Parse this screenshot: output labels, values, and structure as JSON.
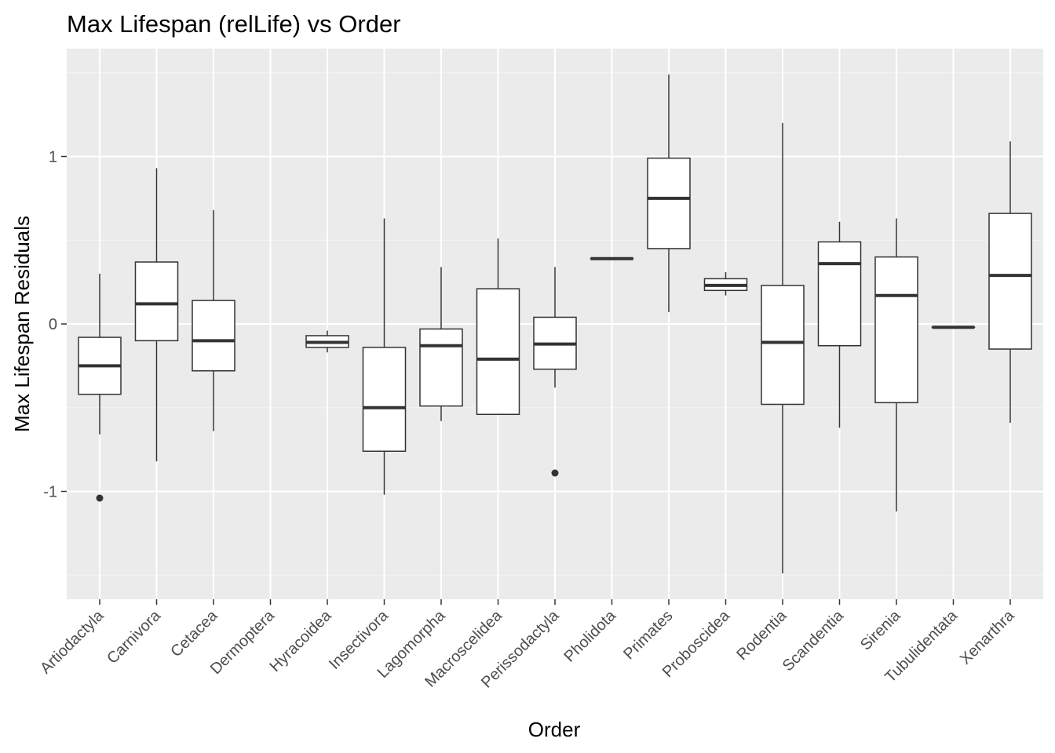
{
  "chart_data": {
    "type": "boxplot",
    "title": "Max Lifespan (relLife) vs Order",
    "xlabel": "Order",
    "ylabel": "Max Lifespan Residuals",
    "ylim": [
      -1.6,
      1.6
    ],
    "yticks": [
      -1,
      0,
      1
    ],
    "ytick_labels": [
      "-1",
      "0",
      "1"
    ],
    "grid": true,
    "categories": [
      "Artiodactyla",
      "Carnivora",
      "Cetacea",
      "Dermoptera",
      "Hyracoidea",
      "Insectivora",
      "Lagomorpha",
      "Macroscelidea",
      "Perissodactyla",
      "Pholidota",
      "Primates",
      "Proboscidea",
      "Rodentia",
      "Scandentia",
      "Sirenia",
      "Tubulidentata",
      "Xenarthra"
    ],
    "boxes": [
      {
        "category": "Artiodactyla",
        "min": -0.66,
        "q1": -0.42,
        "median": -0.25,
        "q3": -0.08,
        "max": 0.3,
        "outliers": [
          -1.04
        ]
      },
      {
        "category": "Carnivora",
        "min": -0.82,
        "q1": -0.1,
        "median": 0.12,
        "q3": 0.37,
        "max": 0.93,
        "outliers": []
      },
      {
        "category": "Cetacea",
        "min": -0.64,
        "q1": -0.28,
        "median": -0.1,
        "q3": 0.14,
        "max": 0.68,
        "outliers": []
      },
      {
        "category": "Dermoptera",
        "empty": true
      },
      {
        "category": "Hyracoidea",
        "min": -0.17,
        "q1": -0.14,
        "median": -0.11,
        "q3": -0.07,
        "max": -0.04,
        "outliers": []
      },
      {
        "category": "Insectivora",
        "min": -1.02,
        "q1": -0.76,
        "median": -0.5,
        "q3": -0.14,
        "max": 0.63,
        "outliers": []
      },
      {
        "category": "Lagomorpha",
        "min": -0.58,
        "q1": -0.49,
        "median": -0.13,
        "q3": -0.03,
        "max": 0.34,
        "outliers": []
      },
      {
        "category": "Macroscelidea",
        "min": -0.54,
        "q1": -0.54,
        "median": -0.21,
        "q3": 0.21,
        "max": 0.51,
        "outliers": []
      },
      {
        "category": "Perissodactyla",
        "min": -0.38,
        "q1": -0.27,
        "median": -0.12,
        "q3": 0.04,
        "max": 0.34,
        "outliers": [
          -0.89
        ]
      },
      {
        "category": "Pholidota",
        "min": 0.39,
        "q1": 0.39,
        "median": 0.39,
        "q3": 0.39,
        "max": 0.39,
        "outliers": []
      },
      {
        "category": "Primates",
        "min": 0.07,
        "q1": 0.45,
        "median": 0.75,
        "q3": 0.99,
        "max": 1.49,
        "outliers": []
      },
      {
        "category": "Proboscidea",
        "min": 0.17,
        "q1": 0.2,
        "median": 0.23,
        "q3": 0.27,
        "max": 0.31,
        "outliers": []
      },
      {
        "category": "Rodentia",
        "min": -1.49,
        "q1": -0.48,
        "median": -0.11,
        "q3": 0.23,
        "max": 1.2,
        "outliers": []
      },
      {
        "category": "Scandentia",
        "min": -0.62,
        "q1": -0.13,
        "median": 0.36,
        "q3": 0.49,
        "max": 0.61,
        "outliers": []
      },
      {
        "category": "Sirenia",
        "min": -1.12,
        "q1": -0.47,
        "median": 0.17,
        "q3": 0.4,
        "max": 0.63,
        "outliers": []
      },
      {
        "category": "Tubulidentata",
        "min": -0.02,
        "q1": -0.02,
        "median": -0.02,
        "q3": -0.02,
        "max": -0.02,
        "outliers": []
      },
      {
        "category": "Xenarthra",
        "min": -0.59,
        "q1": -0.15,
        "median": 0.29,
        "q3": 0.66,
        "max": 1.09,
        "outliers": []
      }
    ],
    "colors": {
      "panel_background": "#ebebeb",
      "grid_major": "#ffffff",
      "grid_minor": "#f5f5f5",
      "box_fill": "#ffffff",
      "box_stroke": "#333333",
      "tick_text": "#4d4d4d"
    }
  }
}
